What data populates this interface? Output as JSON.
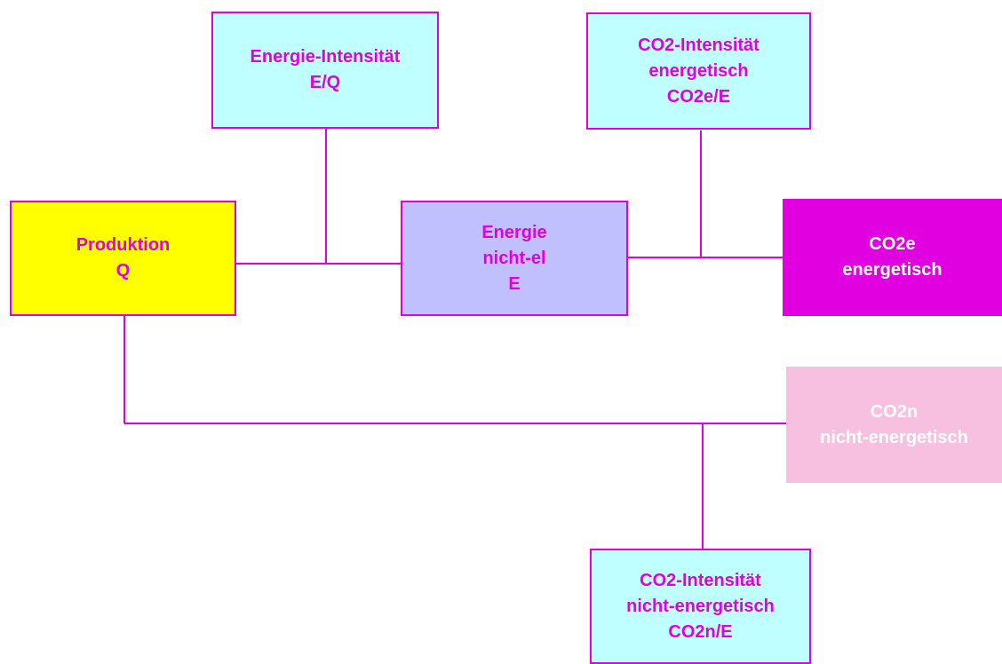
{
  "nodes": [
    {
      "lines": [
        "Energie-Intensität",
        "E/Q"
      ]
    },
    {
      "lines": [
        "CO2-Intensität",
        "energetisch",
        "CO2e/E"
      ]
    },
    {
      "lines": [
        "Produktion",
        "Q"
      ]
    },
    {
      "lines": [
        "Energie",
        "nicht-el",
        "E"
      ]
    },
    {
      "lines": [
        "CO2e",
        "energetisch"
      ]
    },
    {
      "lines": [
        "CO2n",
        "nicht-energetisch"
      ]
    },
    {
      "lines": [
        "CO2-Intensität",
        "nicht-energetisch",
        "CO2n/E"
      ]
    }
  ]
}
